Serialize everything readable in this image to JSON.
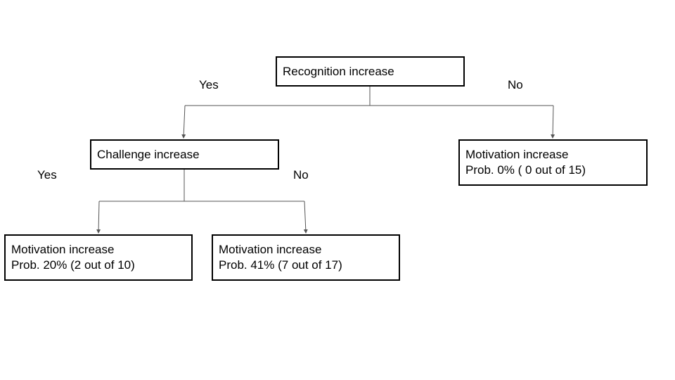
{
  "diagram": {
    "root": {
      "label": "Recognition increase"
    },
    "root_yes_label": "Yes",
    "root_no_label": "No",
    "challenge": {
      "label": "Challenge increase"
    },
    "challenge_yes_label": "Yes",
    "challenge_no_label": "No",
    "leaf_root_no": {
      "title": "Motivation increase",
      "prob": "Prob. 0% ( 0 out of 15)"
    },
    "leaf_challenge_yes": {
      "title": "Motivation increase",
      "prob": "Prob. 20% (2 out of 10)"
    },
    "leaf_challenge_no": {
      "title": "Motivation increase",
      "prob": "Prob. 41% (7 out of 17)"
    }
  }
}
